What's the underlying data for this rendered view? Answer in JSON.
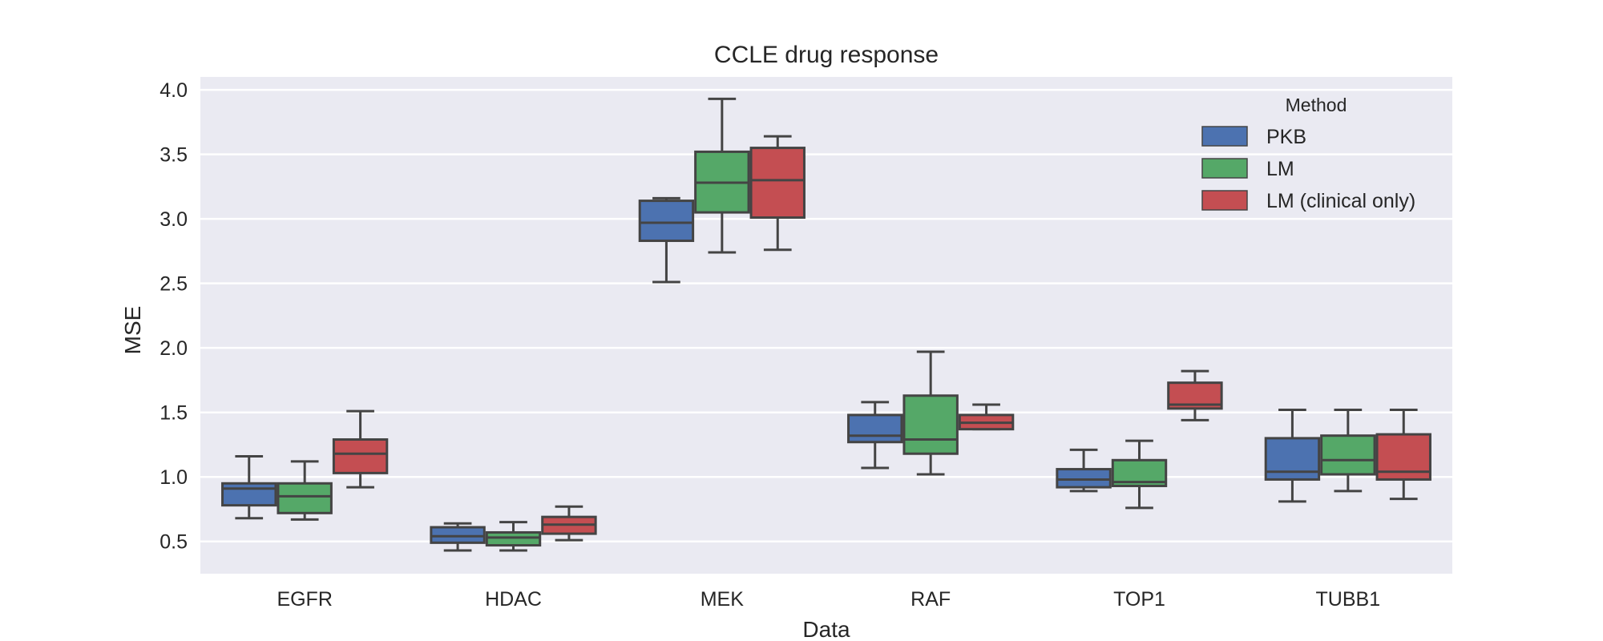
{
  "chart_data": {
    "type": "box",
    "title": "CCLE drug response",
    "xlabel": "Data",
    "ylabel": "MSE",
    "ylim": [
      0.25,
      4.1
    ],
    "yticks": [
      0.5,
      1.0,
      1.5,
      2.0,
      2.5,
      3.0,
      3.5,
      4.0
    ],
    "ytick_labels": [
      "0.5",
      "1.0",
      "1.5",
      "2.0",
      "2.5",
      "3.0",
      "3.5",
      "4.0"
    ],
    "grid": true,
    "background": "#EAEAF2",
    "legend": {
      "title": "Method",
      "placement": "top-right"
    },
    "categories": [
      "EGFR",
      "HDAC",
      "MEK",
      "RAF",
      "TOP1",
      "TUBB1"
    ],
    "series": [
      {
        "name": "PKB",
        "color": "#4C72B0",
        "boxes": [
          {
            "whislo": 0.68,
            "q1": 0.78,
            "med": 0.91,
            "q3": 0.95,
            "whishi": 1.16
          },
          {
            "whislo": 0.43,
            "q1": 0.49,
            "med": 0.54,
            "q3": 0.61,
            "whishi": 0.64
          },
          {
            "whislo": 2.51,
            "q1": 2.83,
            "med": 2.97,
            "q3": 3.14,
            "whishi": 3.16
          },
          {
            "whislo": 1.07,
            "q1": 1.27,
            "med": 1.32,
            "q3": 1.48,
            "whishi": 1.58
          },
          {
            "whislo": 0.89,
            "q1": 0.92,
            "med": 0.98,
            "q3": 1.06,
            "whishi": 1.21
          },
          {
            "whislo": 0.81,
            "q1": 0.98,
            "med": 1.04,
            "q3": 1.3,
            "whishi": 1.52
          }
        ]
      },
      {
        "name": "LM",
        "color": "#55A868",
        "boxes": [
          {
            "whislo": 0.67,
            "q1": 0.72,
            "med": 0.85,
            "q3": 0.95,
            "whishi": 1.12
          },
          {
            "whislo": 0.43,
            "q1": 0.47,
            "med": 0.53,
            "q3": 0.57,
            "whishi": 0.65
          },
          {
            "whislo": 2.74,
            "q1": 3.05,
            "med": 3.28,
            "q3": 3.52,
            "whishi": 3.93
          },
          {
            "whislo": 1.02,
            "q1": 1.18,
            "med": 1.29,
            "q3": 1.63,
            "whishi": 1.97
          },
          {
            "whislo": 0.76,
            "q1": 0.93,
            "med": 0.96,
            "q3": 1.13,
            "whishi": 1.28
          },
          {
            "whislo": 0.89,
            "q1": 1.02,
            "med": 1.13,
            "q3": 1.32,
            "whishi": 1.52
          }
        ]
      },
      {
        "name": "LM (clinical only)",
        "color": "#C44E52",
        "boxes": [
          {
            "whislo": 0.92,
            "q1": 1.03,
            "med": 1.18,
            "q3": 1.29,
            "whishi": 1.51
          },
          {
            "whislo": 0.51,
            "q1": 0.56,
            "med": 0.63,
            "q3": 0.69,
            "whishi": 0.77
          },
          {
            "whislo": 2.76,
            "q1": 3.01,
            "med": 3.3,
            "q3": 3.55,
            "whishi": 3.64
          },
          {
            "whislo": 1.37,
            "q1": 1.37,
            "med": 1.42,
            "q3": 1.48,
            "whishi": 1.56
          },
          {
            "whislo": 1.44,
            "q1": 1.53,
            "med": 1.56,
            "q3": 1.73,
            "whishi": 1.82
          },
          {
            "whislo": 0.83,
            "q1": 0.98,
            "med": 1.04,
            "q3": 1.33,
            "whishi": 1.52
          }
        ]
      }
    ]
  }
}
